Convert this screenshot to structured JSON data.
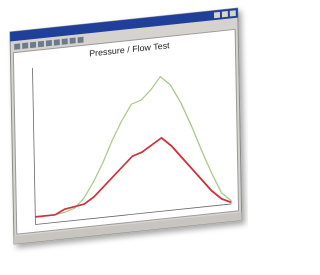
{
  "chart_data": {
    "type": "line",
    "title": "Pressure / Flow Test",
    "x": [
      0,
      10,
      15,
      20,
      25,
      30,
      35,
      40,
      45,
      50,
      55,
      60,
      65,
      70,
      75,
      80,
      85,
      90,
      95,
      100
    ],
    "series": [
      {
        "color": "#a9c98a",
        "values": [
          5,
          5,
          6,
          8,
          14,
          24,
          36,
          50,
          62,
          72,
          74,
          80,
          88,
          82,
          70,
          55,
          38,
          22,
          8,
          2
        ]
      },
      {
        "color": "#d0303a",
        "values": [
          5,
          5,
          8,
          9,
          10,
          14,
          20,
          26,
          32,
          38,
          40,
          44,
          48,
          42,
          34,
          26,
          18,
          10,
          4,
          1
        ]
      }
    ],
    "xlim": [
      0,
      100
    ],
    "ylim": [
      0,
      100
    ]
  }
}
